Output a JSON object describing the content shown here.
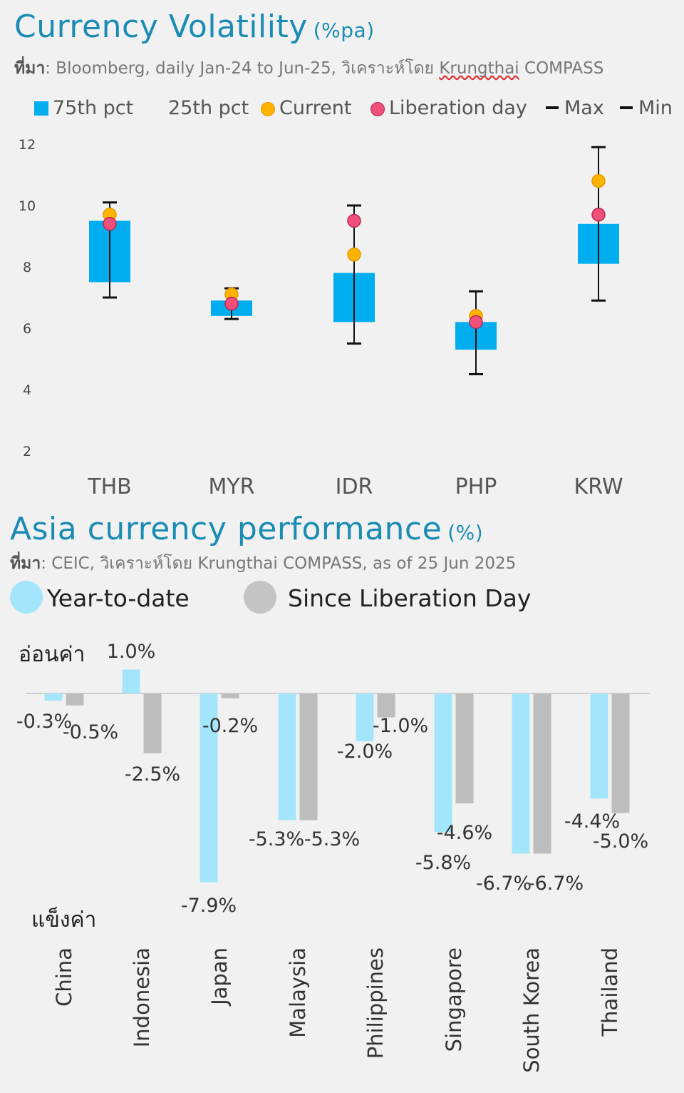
{
  "chart_data": [
    {
      "type": "box",
      "title": "Currency Volatility",
      "title_unit": "(%pa)",
      "source_label": "ที่มา",
      "source_text": ": Bloomberg, daily Jan-24 to Jun-25, วิเคราะห์โดย ",
      "source_brand": "Krungthai",
      "source_brand_rest": " COMPASS",
      "legend": {
        "p75": "75th pct",
        "p25": "25th pct",
        "current": "Current",
        "liberation": "Liberation day",
        "max": "Max",
        "min": "Min"
      },
      "categories": [
        "THB",
        "MYR",
        "IDR",
        "PHP",
        "KRW"
      ],
      "p25": [
        7.5,
        6.4,
        6.2,
        5.3,
        8.1
      ],
      "p75": [
        9.5,
        6.9,
        7.8,
        6.2,
        9.4
      ],
      "max": [
        10.1,
        7.3,
        10.0,
        7.2,
        11.9
      ],
      "min": [
        7.0,
        6.3,
        5.5,
        4.5,
        6.9
      ],
      "current": [
        9.7,
        7.1,
        8.4,
        6.4,
        10.8
      ],
      "liberation_day": [
        9.4,
        6.8,
        9.5,
        6.2,
        9.7
      ],
      "yticks": [
        2,
        4,
        6,
        8,
        10,
        12
      ],
      "ylim": [
        2,
        12
      ],
      "colors": {
        "box": "#00aeef",
        "current": "#ffb300",
        "liberation": "#ef4f7a",
        "whisker": "#111111"
      }
    },
    {
      "type": "bar",
      "title": "Asia currency performance",
      "title_unit": "(%)",
      "source_label": "ที่มา",
      "source_text": ":  CEIC, วิเคราะห์โดย Krungthai COMPASS, as of 25 Jun 2025",
      "series": [
        {
          "name": "Year-to-date",
          "values": [
            -0.3,
            1.0,
            -7.9,
            -5.3,
            -2.0,
            -5.8,
            -6.7,
            -4.4
          ],
          "color": "#a3e6fb"
        },
        {
          "name": "Since Liberation Day",
          "values": [
            -0.5,
            -2.5,
            -0.2,
            -5.3,
            -1.0,
            -4.6,
            -6.7,
            -5.0
          ],
          "color": "#bdbdbd"
        }
      ],
      "categories": [
        "China",
        "Indonesia",
        "Japan",
        "Malaysia",
        "Philippines",
        "Singapore",
        "South Korea",
        "Thailand"
      ],
      "label_top": "อ่อนค่า",
      "label_bottom": "แข็งค่า",
      "data_labels_ytd": [
        "-0.3%",
        "1.0%",
        "-7.9%",
        "-5.3%",
        "-2.0%",
        "-5.8%",
        "-6.7%",
        "-4.4%"
      ],
      "data_labels_sld": [
        "-0.5%",
        "-2.5%",
        "-0.2%",
        "-5.3%",
        "-1.0%",
        "-4.6%",
        "-6.7%",
        "-5.0%"
      ]
    }
  ]
}
